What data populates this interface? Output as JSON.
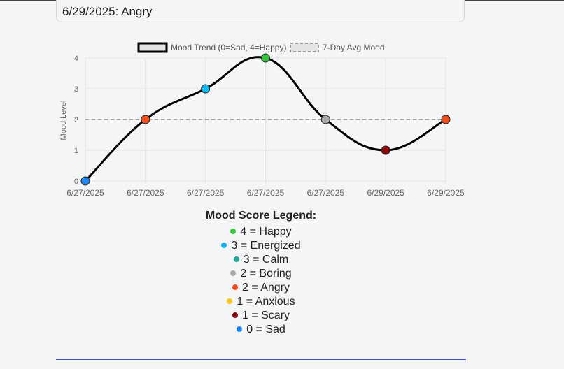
{
  "entry": {
    "text": "6/29/2025: Angry"
  },
  "chart_data": {
    "type": "line",
    "title": "",
    "xlabel": "",
    "ylabel": "Mood Level",
    "ylim": [
      0,
      4
    ],
    "yticks": [
      "0",
      "1",
      "2",
      "3",
      "4"
    ],
    "grid": true,
    "legend_position": "top",
    "categories": [
      "6/27/2025",
      "6/27/2025",
      "6/27/2025",
      "6/27/2025",
      "6/27/2025",
      "6/29/2025",
      "6/29/2025"
    ],
    "series": [
      {
        "name": "Mood Trend (0=Sad, 4=Happy)",
        "values": [
          0,
          2,
          3,
          4,
          2,
          1,
          2
        ],
        "moods": [
          "Sad",
          "Angry",
          "Energized",
          "Happy",
          "Boring",
          "Scary",
          "Angry"
        ],
        "point_colors": [
          "#2185f0",
          "#f04e1a",
          "#14b8f0",
          "#35c43d",
          "#a8a8a8",
          "#8b0a0a",
          "#f04e1a"
        ],
        "line_color": "#000000",
        "smooth": true
      },
      {
        "name": "7-Day Avg Mood",
        "values": [
          2,
          2,
          2,
          2,
          2,
          2,
          2
        ],
        "line_color": "#888888",
        "dashed": true
      }
    ]
  },
  "legend": {
    "title": "Mood Score Legend:",
    "items": [
      {
        "label": "4 = Happy",
        "color": "#35c43d"
      },
      {
        "label": "3 = Energized",
        "color": "#14b8f0"
      },
      {
        "label": "3 = Calm",
        "color": "#20a99a"
      },
      {
        "label": "2 = Boring",
        "color": "#a8a8a8"
      },
      {
        "label": "2 = Angry",
        "color": "#f04e1a"
      },
      {
        "label": "1 = Anxious",
        "color": "#f5c518"
      },
      {
        "label": "1 = Scary",
        "color": "#8b0a0a"
      },
      {
        "label": "0 = Sad",
        "color": "#2185f0"
      }
    ]
  }
}
